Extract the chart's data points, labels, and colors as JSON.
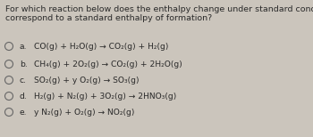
{
  "title_line1": "For which reaction below does the enthalpy change under standard conditions",
  "title_line2": "correspond to a standard enthalpy of formation?",
  "options": [
    {
      "label": "a.",
      "text": "CO(g) + H₂O(g) → CO₂(g) + H₂(g)"
    },
    {
      "label": "b.",
      "text": "CH₄(g) + 2O₂(g) → CO₂(g) + 2H₂O(g)"
    },
    {
      "label": "c.",
      "text": "SO₂(g) + y O₂(g) → SO₃(g)"
    },
    {
      "label": "d.",
      "text": "H₂(g) + N₂(g) + 3O₂(g) → 2HNO₃(g)"
    },
    {
      "label": "e.",
      "text": "y N₂(g) + O₂(g) → NO₂(g)"
    }
  ],
  "bg_color": "#cbc5bc",
  "text_color": "#2a2a2a",
  "title_fontsize": 6.8,
  "option_fontsize": 6.6,
  "circle_color": "#666666"
}
